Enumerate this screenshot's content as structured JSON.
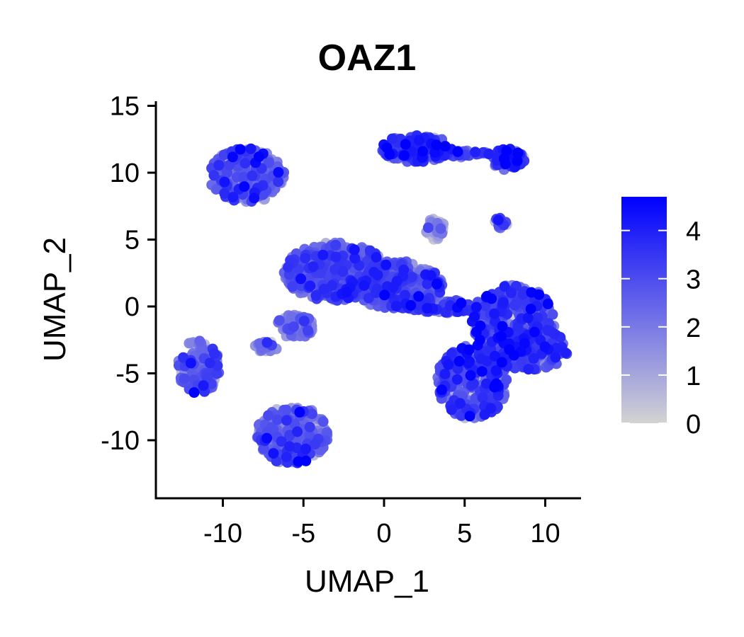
{
  "chart_data": {
    "type": "scatter",
    "title": "OAZ1",
    "xlabel": "UMAP_1",
    "ylabel": "UMAP_2",
    "xlim": [
      -14.2,
      12.2
    ],
    "ylim": [
      -14.2,
      15.3
    ],
    "x_ticks": [
      -10,
      -5,
      0,
      5,
      10
    ],
    "x_tick_labels": [
      "-10",
      "-5",
      "0",
      "5",
      "10"
    ],
    "y_ticks": [
      -10,
      -5,
      0,
      5,
      10,
      15
    ],
    "y_tick_labels": [
      "-10",
      "-5",
      "0",
      "5",
      "10",
      "15"
    ],
    "grid": false,
    "color_scale": {
      "low_color": "#d3d3d3",
      "high_color": "#0000ff",
      "min": 0,
      "max": 4.7,
      "ticks": [
        0,
        1,
        2,
        3,
        4
      ],
      "tick_labels": [
        "0",
        "1",
        "2",
        "3",
        "4"
      ],
      "placement": "right"
    },
    "clusters": [
      {
        "cx": -8.5,
        "cy": 9.8,
        "rx": 2.4,
        "ry": 2.0,
        "n": 260,
        "mean_expr": 2.3
      },
      {
        "cx": 2.0,
        "cy": 11.8,
        "rx": 2.2,
        "ry": 1.0,
        "n": 200,
        "mean_expr": 3.0
      },
      {
        "cx": 5.0,
        "cy": 11.4,
        "rx": 1.6,
        "ry": 0.25,
        "n": 40,
        "mean_expr": 2.6
      },
      {
        "cx": 7.7,
        "cy": 11.0,
        "rx": 1.1,
        "ry": 0.8,
        "n": 70,
        "mean_expr": 3.0
      },
      {
        "cx": 3.2,
        "cy": 5.8,
        "rx": 0.6,
        "ry": 0.8,
        "n": 40,
        "mean_expr": 1.0
      },
      {
        "cx": 7.2,
        "cy": 6.2,
        "rx": 0.5,
        "ry": 0.4,
        "n": 12,
        "mean_expr": 3.2
      },
      {
        "cx": -3.0,
        "cy": 2.6,
        "rx": 3.2,
        "ry": 2.2,
        "n": 420,
        "mean_expr": 2.4
      },
      {
        "cx": 0.8,
        "cy": 1.6,
        "rx": 2.8,
        "ry": 1.8,
        "n": 360,
        "mean_expr": 2.5
      },
      {
        "cx": -5.5,
        "cy": -1.5,
        "rx": 1.2,
        "ry": 0.9,
        "n": 70,
        "mean_expr": 1.8
      },
      {
        "cx": -7.3,
        "cy": -3.0,
        "rx": 0.7,
        "ry": 0.5,
        "n": 30,
        "mean_expr": 1.6
      },
      {
        "cx": 3.5,
        "cy": 0.0,
        "rx": 2.5,
        "ry": 0.5,
        "n": 80,
        "mean_expr": 2.8
      },
      {
        "cx": -11.5,
        "cy": -4.5,
        "rx": 1.3,
        "ry": 2.0,
        "n": 150,
        "mean_expr": 2.2
      },
      {
        "cx": -5.7,
        "cy": -9.6,
        "rx": 2.2,
        "ry": 2.2,
        "n": 280,
        "mean_expr": 2.2
      },
      {
        "cx": 8.0,
        "cy": -1.0,
        "rx": 2.6,
        "ry": 2.6,
        "n": 300,
        "mean_expr": 2.8
      },
      {
        "cx": 9.0,
        "cy": -3.2,
        "rx": 2.4,
        "ry": 1.6,
        "n": 200,
        "mean_expr": 2.9
      },
      {
        "cx": 5.5,
        "cy": -5.6,
        "rx": 2.2,
        "ry": 2.8,
        "n": 320,
        "mean_expr": 2.8
      }
    ]
  }
}
